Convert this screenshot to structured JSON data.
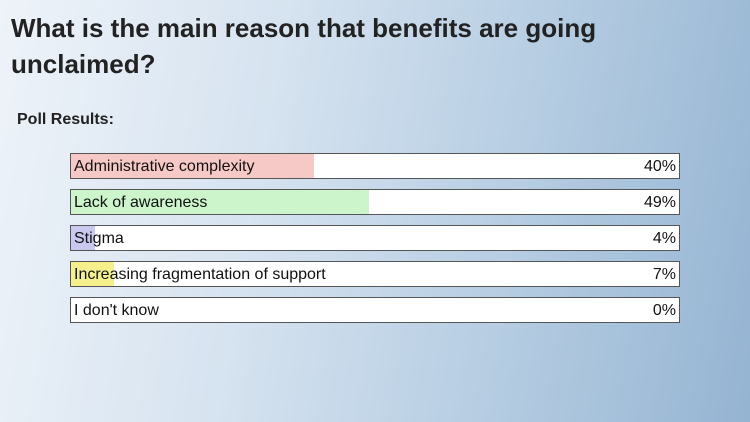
{
  "chart_data": {
    "type": "bar",
    "orientation": "horizontal",
    "title": "What is the main reason that benefits are going unclaimed?",
    "subtitle": "Poll Results:",
    "categories": [
      "Administrative complexity",
      "Lack of awareness",
      "Stigma",
      "Increasing fragmentation of support",
      "I don't know"
    ],
    "values": [
      40,
      49,
      4,
      7,
      0
    ],
    "value_labels": [
      "40%",
      "49%",
      "4%",
      "7%",
      "0%"
    ],
    "colors": [
      "#f6c9c6",
      "#ccf5cc",
      "#c9c9f0",
      "#f5f08c",
      "#dddddd"
    ],
    "xlim": [
      0,
      100
    ]
  }
}
